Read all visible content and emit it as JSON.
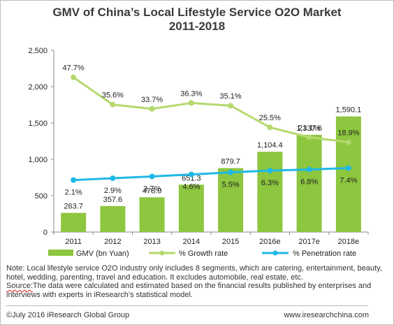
{
  "chart_data": {
    "type": "bar",
    "title": "GMV of China’s Local Lifestyle Service O2O Market",
    "subtitle": "2011-2018",
    "categories": [
      "2011",
      "2012",
      "2013",
      "2014",
      "2015",
      "2016e",
      "2017e",
      "2018e"
    ],
    "series": [
      {
        "name": "GMV (bn Yuan)",
        "type": "bar",
        "color": "#8dc63f",
        "values": [
          263.7,
          357.6,
          478.0,
          651.3,
          879.7,
          1104.4,
          1337.6,
          1590.1
        ],
        "labels": [
          "263.7",
          "357.6",
          "478.0",
          "651.3",
          "879.7",
          "1,104.4",
          "1,337.6",
          "1,590.1"
        ]
      },
      {
        "name": "% Growth rate",
        "type": "line",
        "color": "#b5d96e",
        "values": [
          47.7,
          35.6,
          33.7,
          36.3,
          35.1,
          25.5,
          21.1,
          18.9
        ],
        "labels": [
          "47.7%",
          "35.6%",
          "33.7%",
          "36.3%",
          "35.1%",
          "25.5%",
          "21.1%",
          "18.9%"
        ]
      },
      {
        "name": "% Penetration rate",
        "type": "line",
        "color": "#1fb8e6",
        "values": [
          2.1,
          2.9,
          3.7,
          4.6,
          5.5,
          6.3,
          6.8,
          7.4
        ],
        "labels": [
          "2.1%",
          "2.9%",
          "3.7%",
          "4.6%",
          "5.5%",
          "6.3%",
          "6.8%",
          "7.4%"
        ]
      }
    ],
    "ylim": [
      0,
      2500
    ],
    "yticks": [
      0,
      500,
      1000,
      1500,
      2000,
      2500
    ],
    "ytick_labels": [
      "0",
      "500",
      "1,000",
      "1,500",
      "2,000",
      "2,500"
    ],
    "grid": false,
    "legend_position": "bottom"
  },
  "note": {
    "prefix": "Note: Local lifestyle service O2O industry only includes 8 segments, which are catering, entertainment, beauty, hotel, wedding, parenting, travel and education. It excludes automobile, real estate, etc.",
    "source_label": "Source:",
    "source_text": "The data were calculated and estimated based on the financial results published by enterprises and interviews with experts in iResearch’s statistical model."
  },
  "footer": {
    "copyright": "©July 2016 iResearch Global Group",
    "website": "www.iresearchchina.com"
  }
}
